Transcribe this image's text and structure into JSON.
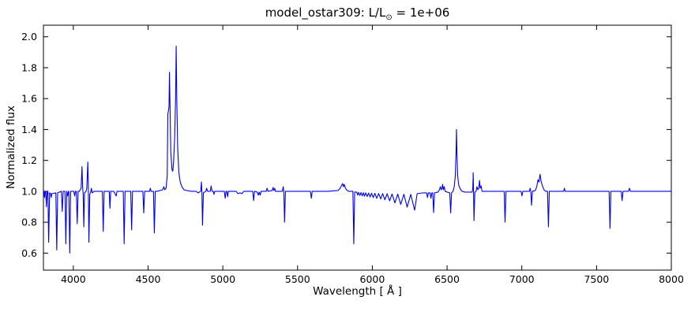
{
  "title": {
    "prefix": "model_ostar309: L/L",
    "sun_symbol": "⊙",
    "suffix": " = 1e+06"
  },
  "chart_data": {
    "type": "line",
    "title": "model_ostar309: L/L⊙ = 1e+06",
    "xlabel": "Wavelength [ Å ]",
    "ylabel": "Normalized flux",
    "xlim": [
      3800,
      8000
    ],
    "ylim": [
      0.49,
      2.075
    ],
    "x_ticks": [
      4000,
      4500,
      5000,
      5500,
      6000,
      6500,
      7000,
      7500,
      8000
    ],
    "y_ticks": [
      0.6,
      0.8,
      1.0,
      1.2,
      1.4,
      1.6,
      1.8,
      2.0
    ],
    "grid": false,
    "legend": false,
    "line_color": "#0000ee",
    "frame_color": "#000000",
    "series": [
      {
        "name": "normalized-flux-spectrum",
        "points": [
          [
            3800,
            0.98
          ],
          [
            3803,
            1.0
          ],
          [
            3808,
            0.96
          ],
          [
            3811,
            1.0
          ],
          [
            3815,
            1.0
          ],
          [
            3820,
            0.9
          ],
          [
            3825,
            1.0
          ],
          [
            3830,
            1.0
          ],
          [
            3835,
            0.67
          ],
          [
            3841,
            0.99
          ],
          [
            3848,
            0.985
          ],
          [
            3852,
            0.96
          ],
          [
            3856,
            0.985
          ],
          [
            3883,
            0.99
          ],
          [
            3889,
            0.62
          ],
          [
            3895,
            0.99
          ],
          [
            3920,
            1.0
          ],
          [
            3926,
            0.87
          ],
          [
            3932,
            1.0
          ],
          [
            3944,
            1.0
          ],
          [
            3950,
            0.66
          ],
          [
            3956,
            1.0
          ],
          [
            3962,
            0.97
          ],
          [
            3967,
            1.0
          ],
          [
            3970,
            1.0
          ],
          [
            3976,
            0.6
          ],
          [
            3982,
            1.0
          ],
          [
            4003,
            1.0
          ],
          [
            4009,
            0.97
          ],
          [
            4014,
            1.0
          ],
          [
            4020,
            1.0
          ],
          [
            4026,
            0.79
          ],
          [
            4032,
            1.0
          ],
          [
            4040,
            1.0
          ],
          [
            4052,
            1.02
          ],
          [
            4058,
            1.16
          ],
          [
            4062,
            1.03
          ],
          [
            4066,
            0.98
          ],
          [
            4070,
            0.77
          ],
          [
            4075,
            0.99
          ],
          [
            4085,
            1.0
          ],
          [
            4090,
            1.02
          ],
          [
            4097,
            1.19
          ],
          [
            4100,
            1.05
          ],
          [
            4104,
            0.67
          ],
          [
            4110,
            0.98
          ],
          [
            4117,
            1.0
          ],
          [
            4121,
            1.02
          ],
          [
            4126,
            0.99
          ],
          [
            4140,
            1.0
          ],
          [
            4194,
            1.0
          ],
          [
            4200,
            0.74
          ],
          [
            4206,
            1.0
          ],
          [
            4240,
            1.0
          ],
          [
            4245,
            0.89
          ],
          [
            4250,
            1.0
          ],
          [
            4270,
            1.0
          ],
          [
            4287,
            0.97
          ],
          [
            4292,
            1.0
          ],
          [
            4334,
            1.0
          ],
          [
            4340,
            0.66
          ],
          [
            4346,
            1.0
          ],
          [
            4384,
            1.0
          ],
          [
            4390,
            0.75
          ],
          [
            4396,
            1.0
          ],
          [
            4465,
            1.0
          ],
          [
            4471,
            0.86
          ],
          [
            4477,
            1.0
          ],
          [
            4510,
            1.0
          ],
          [
            4515,
            1.02
          ],
          [
            4520,
            1.0
          ],
          [
            4536,
            1.0
          ],
          [
            4542,
            0.73
          ],
          [
            4548,
            1.0
          ],
          [
            4560,
            1.0
          ],
          [
            4598,
            1.01
          ],
          [
            4605,
            1.03
          ],
          [
            4612,
            1.01
          ],
          [
            4620,
            1.02
          ],
          [
            4628,
            1.1
          ],
          [
            4632,
            1.5
          ],
          [
            4636,
            1.52
          ],
          [
            4640,
            1.55
          ],
          [
            4643,
            1.77
          ],
          [
            4647,
            1.55
          ],
          [
            4652,
            1.25
          ],
          [
            4660,
            1.14
          ],
          [
            4665,
            1.13
          ],
          [
            4670,
            1.18
          ],
          [
            4678,
            1.35
          ],
          [
            4684,
            1.6
          ],
          [
            4688,
            1.94
          ],
          [
            4692,
            1.6
          ],
          [
            4698,
            1.28
          ],
          [
            4706,
            1.12
          ],
          [
            4715,
            1.06
          ],
          [
            4726,
            1.03
          ],
          [
            4740,
            1.01
          ],
          [
            4760,
            1.005
          ],
          [
            4790,
            1.0
          ],
          [
            4820,
            1.0
          ],
          [
            4835,
            0.99
          ],
          [
            4852,
            1.0
          ],
          [
            4857,
            1.06
          ],
          [
            4860,
            1.0
          ],
          [
            4864,
            0.78
          ],
          [
            4870,
            0.99
          ],
          [
            4886,
            1.0
          ],
          [
            4892,
            1.02
          ],
          [
            4898,
            1.0
          ],
          [
            4916,
            1.0
          ],
          [
            4922,
            1.035
          ],
          [
            4928,
            1.0
          ],
          [
            4936,
            1.0
          ],
          [
            4941,
            0.98
          ],
          [
            4946,
            1.0
          ],
          [
            5010,
            1.0
          ],
          [
            5016,
            0.955
          ],
          [
            5021,
            1.0
          ],
          [
            5027,
            1.0
          ],
          [
            5032,
            0.965
          ],
          [
            5037,
            1.0
          ],
          [
            5090,
            1.0
          ],
          [
            5100,
            0.985
          ],
          [
            5115,
            0.99
          ],
          [
            5128,
            0.985
          ],
          [
            5140,
            1.0
          ],
          [
            5200,
            1.0
          ],
          [
            5206,
            0.94
          ],
          [
            5212,
            1.0
          ],
          [
            5230,
            0.995
          ],
          [
            5237,
            0.975
          ],
          [
            5243,
            0.995
          ],
          [
            5250,
            0.975
          ],
          [
            5256,
            1.0
          ],
          [
            5290,
            1.0
          ],
          [
            5296,
            1.02
          ],
          [
            5302,
            1.0
          ],
          [
            5330,
            1.005
          ],
          [
            5336,
            1.025
          ],
          [
            5341,
            1.005
          ],
          [
            5347,
            1.02
          ],
          [
            5352,
            1.0
          ],
          [
            5398,
            1.0
          ],
          [
            5404,
            1.03
          ],
          [
            5408,
            1.0
          ],
          [
            5413,
            0.8
          ],
          [
            5419,
            1.0
          ],
          [
            5586,
            1.0
          ],
          [
            5592,
            0.955
          ],
          [
            5598,
            1.0
          ],
          [
            5700,
            1.0
          ],
          [
            5770,
            1.005
          ],
          [
            5785,
            1.02
          ],
          [
            5801,
            1.05
          ],
          [
            5807,
            1.03
          ],
          [
            5812,
            1.045
          ],
          [
            5820,
            1.02
          ],
          [
            5832,
            1.005
          ],
          [
            5845,
            1.0
          ],
          [
            5870,
            1.0
          ],
          [
            5876,
            0.66
          ],
          [
            5882,
            0.995
          ],
          [
            5896,
            0.995
          ],
          [
            5902,
            0.975
          ],
          [
            5908,
            0.993
          ],
          [
            5917,
            0.973
          ],
          [
            5924,
            0.992
          ],
          [
            5933,
            0.971
          ],
          [
            5940,
            0.991
          ],
          [
            5948,
            0.968
          ],
          [
            5956,
            0.99
          ],
          [
            5966,
            0.966
          ],
          [
            5975,
            0.989
          ],
          [
            5985,
            0.963
          ],
          [
            5995,
            0.988
          ],
          [
            6006,
            0.959
          ],
          [
            6017,
            0.987
          ],
          [
            6029,
            0.955
          ],
          [
            6042,
            0.986
          ],
          [
            6056,
            0.951
          ],
          [
            6069,
            0.985
          ],
          [
            6084,
            0.945
          ],
          [
            6099,
            0.984
          ],
          [
            6116,
            0.938
          ],
          [
            6132,
            0.983
          ],
          [
            6151,
            0.925
          ],
          [
            6170,
            0.982
          ],
          [
            6190,
            0.915
          ],
          [
            6211,
            0.981
          ],
          [
            6233,
            0.898
          ],
          [
            6257,
            0.98
          ],
          [
            6283,
            0.878
          ],
          [
            6300,
            0.985
          ],
          [
            6340,
            0.99
          ],
          [
            6363,
            0.99
          ],
          [
            6369,
            0.96
          ],
          [
            6375,
            0.99
          ],
          [
            6386,
            0.99
          ],
          [
            6392,
            0.955
          ],
          [
            6398,
            0.99
          ],
          [
            6404,
            0.99
          ],
          [
            6410,
            0.863
          ],
          [
            6416,
            0.99
          ],
          [
            6440,
            0.995
          ],
          [
            6449,
            1.01
          ],
          [
            6455,
            1.03
          ],
          [
            6461,
            1.01
          ],
          [
            6466,
            1.02
          ],
          [
            6470,
            1.045
          ],
          [
            6475,
            1.01
          ],
          [
            6481,
            1.03
          ],
          [
            6487,
            1.0
          ],
          [
            6500,
            0.995
          ],
          [
            6518,
            0.99
          ],
          [
            6524,
            0.86
          ],
          [
            6530,
            0.99
          ],
          [
            6540,
            1.0
          ],
          [
            6548,
            1.03
          ],
          [
            6555,
            1.1
          ],
          [
            6560,
            1.25
          ],
          [
            6563,
            1.4
          ],
          [
            6566,
            1.25
          ],
          [
            6571,
            1.1
          ],
          [
            6578,
            1.04
          ],
          [
            6588,
            1.015
          ],
          [
            6600,
            1.0
          ],
          [
            6620,
            0.995
          ],
          [
            6650,
            0.995
          ],
          [
            6668,
            0.995
          ],
          [
            6672,
            1.02
          ],
          [
            6675,
            1.12
          ],
          [
            6677,
            1.0
          ],
          [
            6680,
            0.81
          ],
          [
            6686,
            0.995
          ],
          [
            6694,
            1.0
          ],
          [
            6700,
            1.03
          ],
          [
            6706,
            1.01
          ],
          [
            6712,
            1.02
          ],
          [
            6717,
            1.07
          ],
          [
            6722,
            1.02
          ],
          [
            6728,
            1.035
          ],
          [
            6734,
            1.0
          ],
          [
            6760,
            1.0
          ],
          [
            6882,
            1.0
          ],
          [
            6888,
            0.8
          ],
          [
            6894,
            1.0
          ],
          [
            6995,
            1.0
          ],
          [
            7001,
            0.97
          ],
          [
            7007,
            1.0
          ],
          [
            7050,
            1.0
          ],
          [
            7056,
            1.02
          ],
          [
            7060,
            1.0
          ],
          [
            7065,
            0.91
          ],
          [
            7071,
            1.0
          ],
          [
            7090,
            1.005
          ],
          [
            7100,
            1.03
          ],
          [
            7108,
            1.075
          ],
          [
            7115,
            1.06
          ],
          [
            7122,
            1.11
          ],
          [
            7128,
            1.07
          ],
          [
            7136,
            1.04
          ],
          [
            7148,
            1.01
          ],
          [
            7160,
            1.0
          ],
          [
            7172,
            1.0
          ],
          [
            7178,
            0.77
          ],
          [
            7184,
            1.0
          ],
          [
            7280,
            1.0
          ],
          [
            7285,
            1.02
          ],
          [
            7290,
            1.0
          ],
          [
            7400,
            1.0
          ],
          [
            7584,
            1.0
          ],
          [
            7590,
            0.76
          ],
          [
            7596,
            1.0
          ],
          [
            7665,
            1.0
          ],
          [
            7671,
            0.94
          ],
          [
            7677,
            1.0
          ],
          [
            7714,
            1.0
          ],
          [
            7720,
            1.02
          ],
          [
            7726,
            1.0
          ],
          [
            7800,
            1.0
          ],
          [
            7900,
            1.0
          ],
          [
            8000,
            1.0
          ]
        ]
      }
    ]
  }
}
